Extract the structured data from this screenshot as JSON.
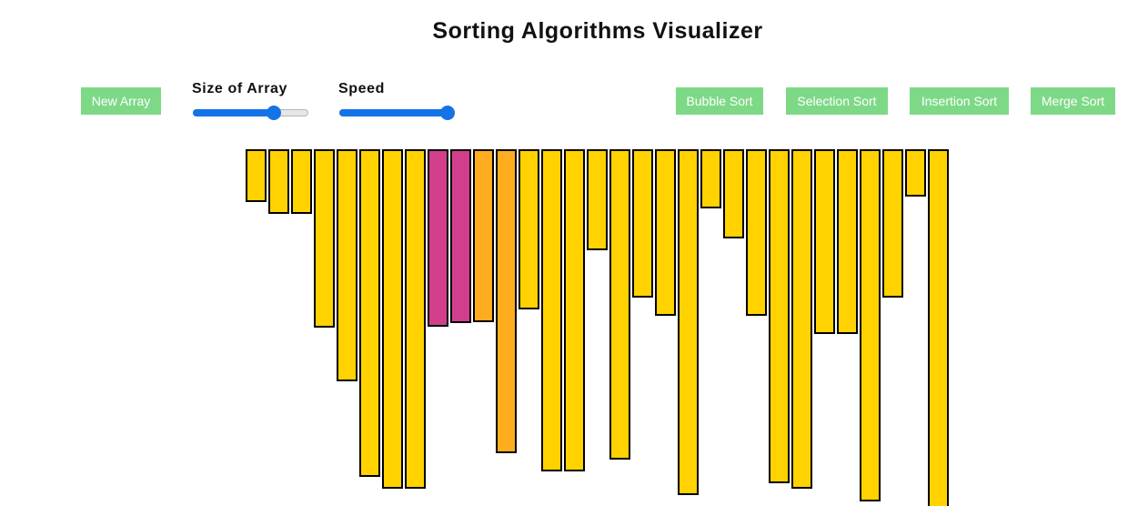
{
  "title": "Sorting Algorithms Visualizer",
  "controls": {
    "new_array_label": "New Array",
    "size_label": "Size of Array",
    "speed_label": "Speed",
    "size_slider_value": 0.73,
    "speed_slider_value": 1.0,
    "slider_color": "#1473e6"
  },
  "algorithms": {
    "bubble": "Bubble Sort",
    "selection": "Selection Sort",
    "insertion": "Insertion Sort",
    "merge": "Merge Sort"
  },
  "colors": {
    "button_bg": "#7ed987",
    "bar_default": "#ffd200",
    "bar_compare": "#d13f8c",
    "bar_swap": "#ffad1f"
  },
  "bars": [
    {
      "value": 58,
      "state": "default"
    },
    {
      "value": 71,
      "state": "default"
    },
    {
      "value": 71,
      "state": "default"
    },
    {
      "value": 196,
      "state": "default"
    },
    {
      "value": 255,
      "state": "default"
    },
    {
      "value": 360,
      "state": "default"
    },
    {
      "value": 373,
      "state": "default"
    },
    {
      "value": 373,
      "state": "default"
    },
    {
      "value": 195,
      "state": "compare"
    },
    {
      "value": 191,
      "state": "compare"
    },
    {
      "value": 190,
      "state": "swap"
    },
    {
      "value": 334,
      "state": "swap"
    },
    {
      "value": 176,
      "state": "default"
    },
    {
      "value": 354,
      "state": "default"
    },
    {
      "value": 354,
      "state": "default"
    },
    {
      "value": 111,
      "state": "default"
    },
    {
      "value": 341,
      "state": "default"
    },
    {
      "value": 163,
      "state": "default"
    },
    {
      "value": 183,
      "state": "default"
    },
    {
      "value": 380,
      "state": "default"
    },
    {
      "value": 65,
      "state": "default"
    },
    {
      "value": 98,
      "state": "default"
    },
    {
      "value": 183,
      "state": "default"
    },
    {
      "value": 367,
      "state": "default"
    },
    {
      "value": 373,
      "state": "default"
    },
    {
      "value": 203,
      "state": "default"
    },
    {
      "value": 203,
      "state": "default"
    },
    {
      "value": 387,
      "state": "default"
    },
    {
      "value": 163,
      "state": "default"
    },
    {
      "value": 52,
      "state": "default"
    },
    {
      "value": 400,
      "state": "default"
    }
  ]
}
